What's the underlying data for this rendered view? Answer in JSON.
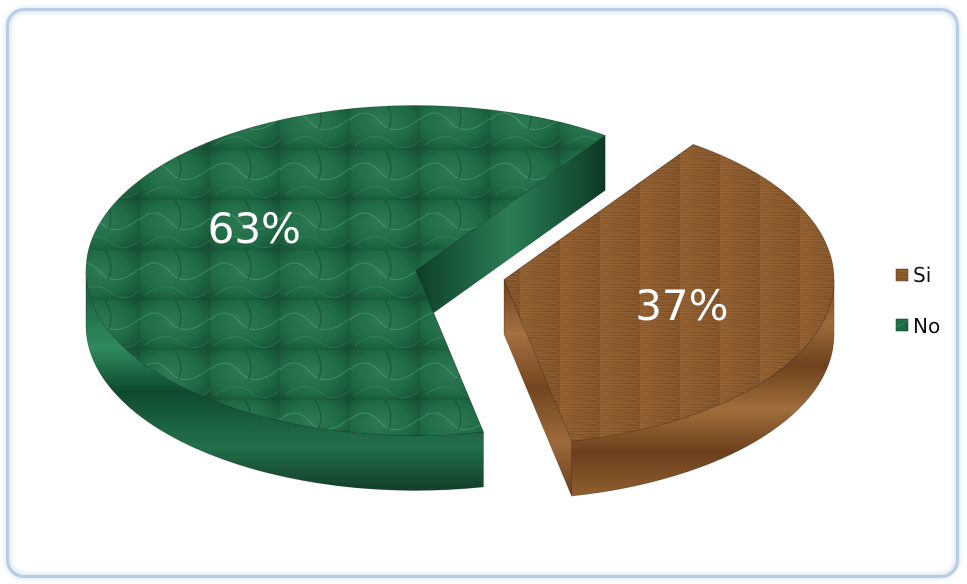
{
  "chart_data": {
    "type": "pie",
    "title": "",
    "categories": [
      "Si",
      "No"
    ],
    "values": [
      37,
      63
    ],
    "value_labels": [
      "37%",
      "63%"
    ],
    "colors": {
      "Si": "#8a5a2e",
      "No": "#1f6b45"
    },
    "legend_position": "right",
    "style": "3d-exploded"
  }
}
